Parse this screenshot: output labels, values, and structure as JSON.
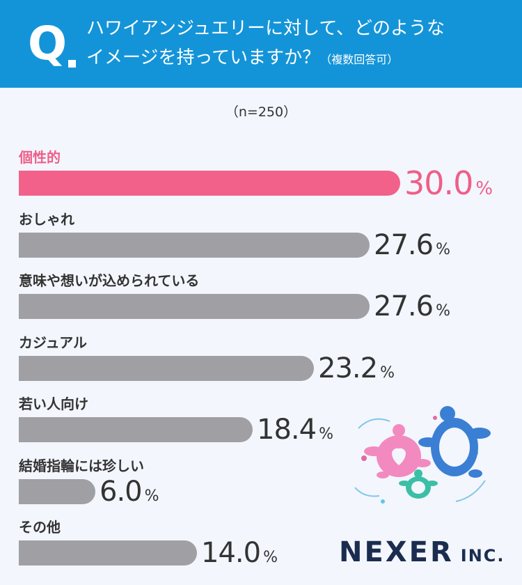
{
  "header": {
    "q_mark": "Q",
    "question_line1": "ハワイアンジュエリーに対して、どのような",
    "question_line2": "イメージを持っていますか？",
    "question_note": "（複数回答可）"
  },
  "sample_size": "（n=250）",
  "chart_data": {
    "type": "bar",
    "orientation": "horizontal",
    "categories": [
      "個性的",
      "おしゃれ",
      "意味や想いが込められている",
      "カジュアル",
      "若い人向け",
      "結婚指輪には珍しい",
      "その他"
    ],
    "values": [
      30.0,
      27.6,
      27.6,
      23.2,
      18.4,
      6.0,
      14.0
    ],
    "value_labels": [
      "30.0",
      "27.6",
      "27.6",
      "23.2",
      "18.4",
      "6.0",
      "14.0"
    ],
    "unit": "%",
    "highlight_index": 0,
    "colors": {
      "highlight": "#f26189",
      "default": "#a0a0a4"
    }
  },
  "logo": {
    "name": "NEXER",
    "suffix": "INC."
  },
  "colors": {
    "header_bg": "#1494d8",
    "page_bg": "#f3f6fd",
    "logo": "#1b2d4f"
  }
}
